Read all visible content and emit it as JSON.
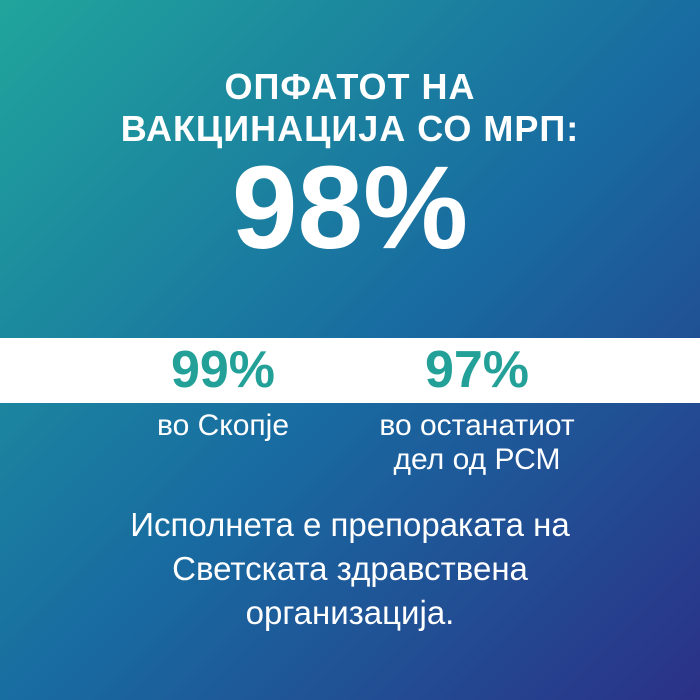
{
  "colors": {
    "gradient_top_left": "#20A59C",
    "gradient_middle": "#186BA1",
    "gradient_bottom_right": "#2B3187",
    "band_background": "#FFFFFF",
    "accent_teal": "#23A098",
    "text_white": "#FFFFFF"
  },
  "header": {
    "line1": "ОПФАТОТ НА",
    "line2": "ВАКЦИНАЦИЈА СО МРП:"
  },
  "main_stat": {
    "value": "98%"
  },
  "comparison": {
    "items": [
      {
        "value": "99%",
        "label_lines": [
          "во Скопје"
        ]
      },
      {
        "value": "97%",
        "label_lines": [
          "во останатиот",
          "дел од РСМ"
        ]
      }
    ]
  },
  "footer": {
    "lines": [
      "Исполнета е препораката на",
      "Светската здравствена",
      "организација."
    ]
  },
  "chart_data": {
    "type": "table",
    "title": "ОПФАТОТ НА ВАКЦИНАЦИЈА СО МРП: 98%",
    "overall_value": 98,
    "unit": "%",
    "categories": [
      "во Скопје",
      "во останатиот дел од РСМ"
    ],
    "values": [
      99,
      97
    ],
    "annotation": "Исполнета е препораката на Светската здравствена организација."
  }
}
